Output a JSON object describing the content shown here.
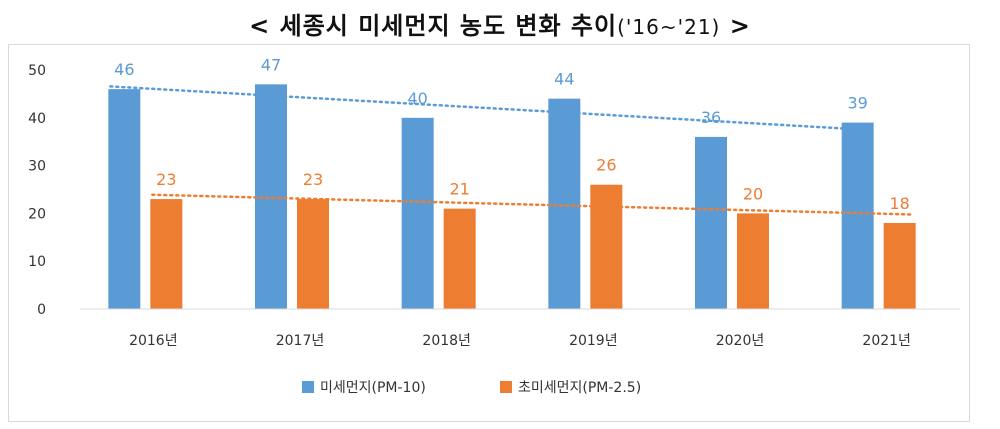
{
  "title_main": "< 세종시 미세먼지 농도 변화 추이",
  "title_period": "('16~'21)",
  "title_end": " >",
  "chart_data": {
    "type": "bar",
    "title": "< 세종시 미세먼지 농도 변화 추이('16~'21) >",
    "categories": [
      "2016년",
      "2017년",
      "2018년",
      "2019년",
      "2020년",
      "2021년"
    ],
    "series": [
      {
        "name": "미세먼지(PM-10)",
        "values": [
          46,
          47,
          40,
          44,
          36,
          39
        ],
        "color": "#5b9bd5"
      },
      {
        "name": "초미세먼지(PM-2.5)",
        "values": [
          23,
          23,
          21,
          26,
          20,
          18
        ],
        "color": "#ed7d31"
      }
    ],
    "yticks": [
      0,
      10,
      20,
      30,
      40,
      50
    ],
    "ylim": [
      0,
      50
    ],
    "trendlines": true,
    "grid": false,
    "legend_position": "bottom",
    "xlabel": "",
    "ylabel": ""
  }
}
